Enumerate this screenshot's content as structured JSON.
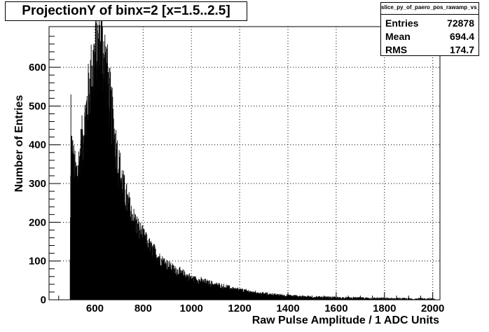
{
  "chart_data": {
    "type": "bar",
    "title": "ProjectionY of binx=2 [x=1.5..2.5]",
    "xlabel": "Raw Pulse Amplitude / 1 ADC Units",
    "ylabel": "Number of Entries",
    "xlim": [
      410,
      2030
    ],
    "ylim": [
      0,
      705
    ],
    "x_ticks": [
      600,
      800,
      1000,
      1200,
      1400,
      1600,
      1800,
      2000
    ],
    "y_ticks": [
      0,
      100,
      200,
      300,
      400,
      500,
      600
    ],
    "grid": true,
    "stats_box": {
      "name": "slice_py_of_paero_pos_rawamp_vs_cntr",
      "entries": [
        {
          "key": "Entries",
          "value": "72878"
        },
        {
          "key": "Mean",
          "value": "694.4"
        },
        {
          "key": "RMS",
          "value": "174.7"
        }
      ]
    },
    "envelope": {
      "bin_width": 1,
      "x": [
        496,
        500,
        505,
        510,
        520,
        530,
        540,
        560,
        580,
        600,
        615,
        625,
        635,
        645,
        660,
        680,
        700,
        720,
        750,
        780,
        820,
        870,
        920,
        1000,
        1100,
        1200,
        1300,
        1400,
        1500,
        1600,
        1700,
        1800,
        1900,
        2000,
        2010
      ],
      "y": [
        0,
        400,
        380,
        350,
        320,
        330,
        380,
        460,
        560,
        620,
        650,
        655,
        640,
        600,
        520,
        420,
        340,
        280,
        220,
        180,
        140,
        105,
        80,
        55,
        38,
        25,
        15,
        10,
        7,
        5,
        4,
        3,
        2,
        2,
        0
      ]
    },
    "spikes": [
      {
        "x": 500,
        "value": 530
      },
      {
        "x": 505,
        "value": 410
      },
      {
        "x": 623,
        "value": 668
      },
      {
        "x": 630,
        "value": 660
      },
      {
        "x": 642,
        "value": 655
      }
    ]
  }
}
